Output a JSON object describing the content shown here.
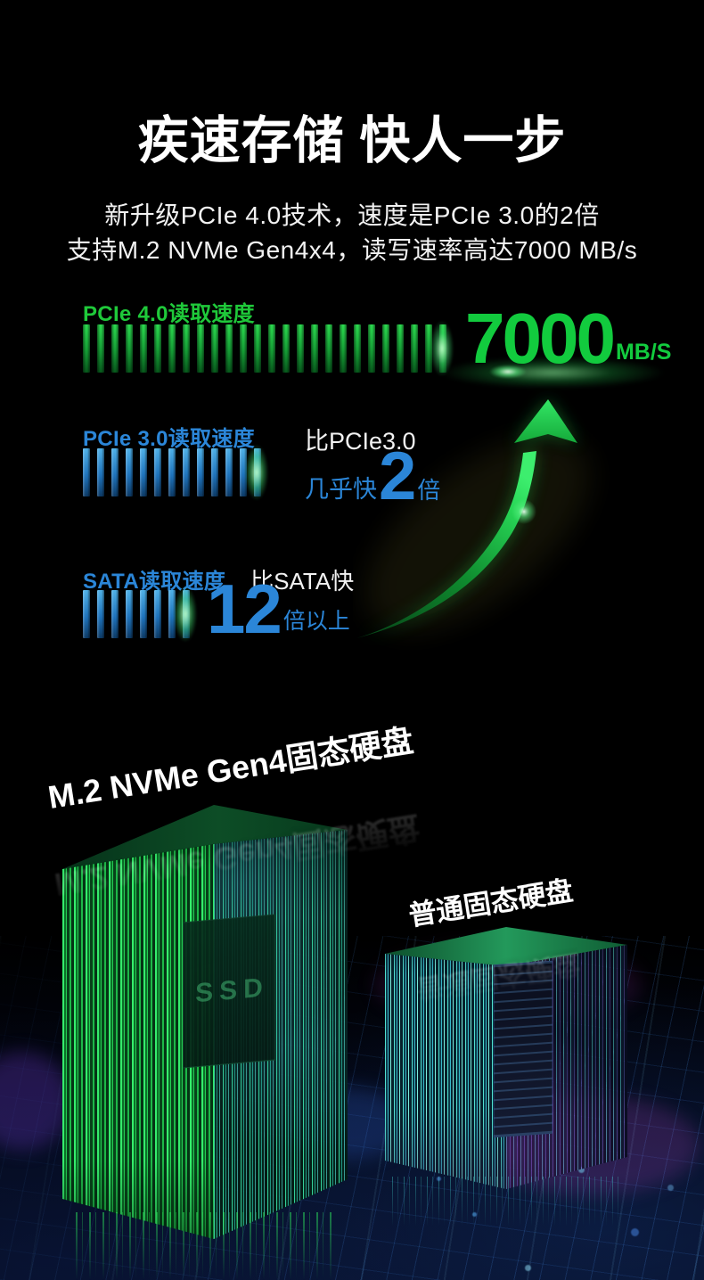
{
  "header": {
    "title": "疾速存储 快人一步",
    "subtitle_line1": "新升级PCIe 4.0技术，速度是PCIe 3.0的2倍",
    "subtitle_line2": "支持M.2 NVMe Gen4x4，读写速率高达7000 MB/s"
  },
  "chart_data": {
    "type": "bar",
    "orientation": "horizontal",
    "title": "读取速度对比",
    "legend_position": "none",
    "rows": [
      {
        "label": "PCIe 4.0读取速度",
        "value": "7000",
        "unit": "MB/S",
        "bar_segments": 26,
        "color": "#14c93e"
      },
      {
        "label": "PCIe 3.0读取速度",
        "note_top": "比PCIe3.0",
        "note_pre": "几乎快",
        "value": "2",
        "unit": "倍",
        "bar_segments": 13,
        "color": "#2b86d8"
      },
      {
        "label": "SATA读取速度",
        "note_top": "比SATA快",
        "value": "12",
        "unit": "倍以上",
        "bar_segments": 8,
        "color": "#2b86d8"
      }
    ]
  },
  "scene": {
    "left_tower_label": "M.2 NVMe Gen4固态硬盘",
    "right_tower_label": "普通固态硬盘",
    "ssd_panel_text": "SSD"
  },
  "colors": {
    "background": "#000000",
    "green_label": "#1fc93a",
    "green_value": "#12cb3e",
    "blue": "#2b86d8",
    "white": "#ffffff"
  }
}
